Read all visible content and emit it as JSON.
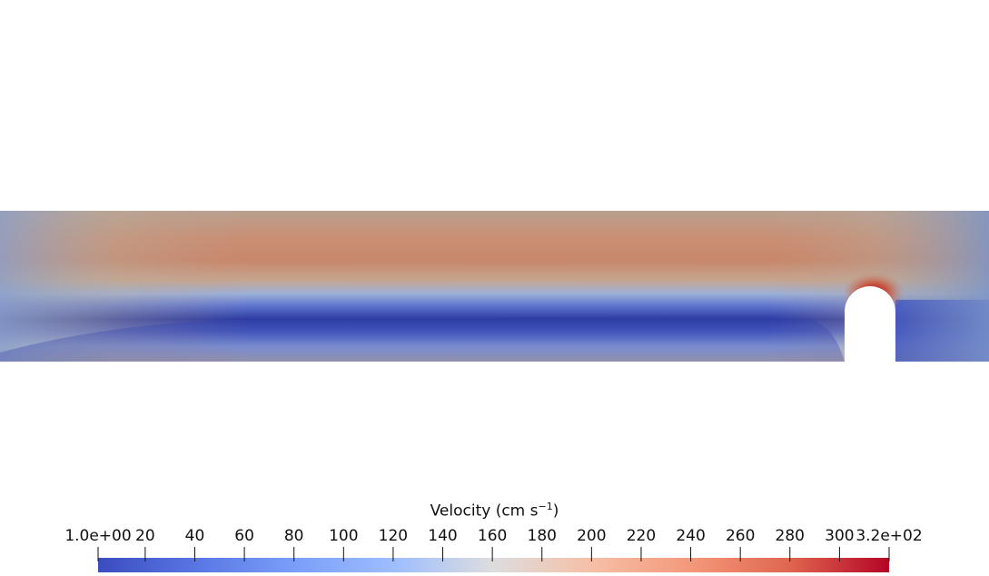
{
  "visualization": {
    "field": "velocity magnitude",
    "colormap": "cool-to-warm",
    "colors": {
      "low": "#3b4cc0",
      "mid": "#dddddd",
      "high": "#b40426",
      "background": "#ffffff"
    }
  },
  "colorbar": {
    "title_prefix": "Velocity (cm s",
    "title_exponent": "−1",
    "title_suffix": ")",
    "range": [
      1.0,
      320
    ],
    "ticks": [
      {
        "label": "1.0e+00",
        "value": 1.0
      },
      {
        "label": "20",
        "value": 20
      },
      {
        "label": "40",
        "value": 40
      },
      {
        "label": "60",
        "value": 60
      },
      {
        "label": "80",
        "value": 80
      },
      {
        "label": "100",
        "value": 100
      },
      {
        "label": "120",
        "value": 120
      },
      {
        "label": "140",
        "value": 140
      },
      {
        "label": "160",
        "value": 160
      },
      {
        "label": "180",
        "value": 180
      },
      {
        "label": "200",
        "value": 200
      },
      {
        "label": "220",
        "value": 220
      },
      {
        "label": "240",
        "value": 240
      },
      {
        "label": "260",
        "value": 260
      },
      {
        "label": "280",
        "value": 280
      },
      {
        "label": "300",
        "value": 300
      },
      {
        "label": "3.2e+02",
        "value": 320
      }
    ]
  }
}
